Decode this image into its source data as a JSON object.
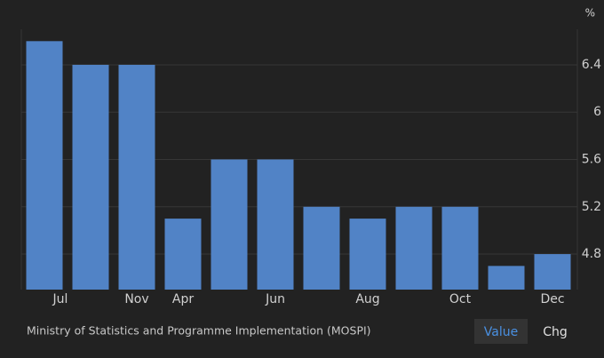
{
  "chart_data": {
    "type": "bar",
    "y_unit": "%",
    "categories": [
      "Jul",
      null,
      "Nov",
      "Apr",
      null,
      "Jun",
      null,
      "Aug",
      null,
      "Oct",
      null,
      "Dec"
    ],
    "values": [
      6.6,
      6.4,
      6.4,
      5.1,
      5.6,
      5.6,
      5.2,
      5.1,
      5.2,
      5.2,
      4.7,
      4.8
    ],
    "color": "#5183c6",
    "ylim": [
      4.5,
      6.7
    ],
    "yticks": [
      4.8,
      5.2,
      5.6,
      6.0,
      6.4
    ],
    "grid": true
  },
  "source": "Ministry of Statistics and Programme Implementation (MOSPI)",
  "controls": [
    "Value",
    "Chg"
  ],
  "active_control": 0
}
